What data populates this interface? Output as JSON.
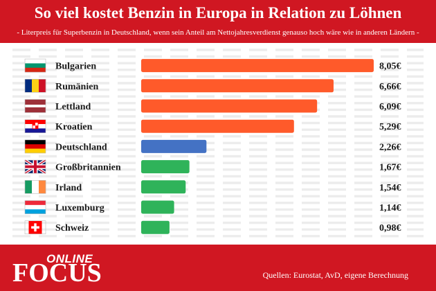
{
  "header": {
    "title": "So viel kostet Benzin in Europa in Relation zu Löhnen",
    "subtitle": "- Literpreis für Superbenzin in Deutschland, wenn sein Anteil am Nettojahresverdienst genauso hoch wäre wie in anderen Ländern -"
  },
  "footer": {
    "logo_online": "ONLINE",
    "logo_focus": "FOCUS",
    "source": "Quellen: Eurostat, AvD, eigene Berechnung"
  },
  "colors": {
    "brand_red": "#d01722",
    "bar_orange": "#ff5a2a",
    "bar_blue": "#4472c4",
    "bar_green": "#2fb35a",
    "stripe": "#ececec"
  },
  "chart_data": {
    "type": "bar",
    "orientation": "horizontal",
    "title": "So viel kostet Benzin in Europa in Relation zu Löhnen",
    "subtitle": "- Literpreis für Superbenzin in Deutschland, wenn sein Anteil am Nettojahresverdienst genauso hoch wäre wie in anderen Ländern -",
    "categories": [
      "Bulgarien",
      "Rumänien",
      "Lettland",
      "Kroatien",
      "Deutschland",
      "Großbritannien",
      "Irland",
      "Luxemburg",
      "Schweiz"
    ],
    "values": [
      8.05,
      6.66,
      6.09,
      5.29,
      2.26,
      1.67,
      1.54,
      1.14,
      0.98
    ],
    "value_labels": [
      "8,05€",
      "6,66€",
      "6,09€",
      "5,29€",
      "2,26€",
      "1,67€",
      "1,54€",
      "1,14€",
      "0,98€"
    ],
    "bar_colors": [
      "#ff5a2a",
      "#ff5a2a",
      "#ff5a2a",
      "#ff5a2a",
      "#4472c4",
      "#2fb35a",
      "#2fb35a",
      "#2fb35a",
      "#2fb35a"
    ],
    "flags": [
      "bg",
      "ro",
      "lv",
      "hr",
      "de",
      "gb",
      "ie",
      "lu",
      "ch"
    ],
    "xlim": [
      0,
      8.05
    ],
    "grid": false,
    "legend": "none"
  }
}
